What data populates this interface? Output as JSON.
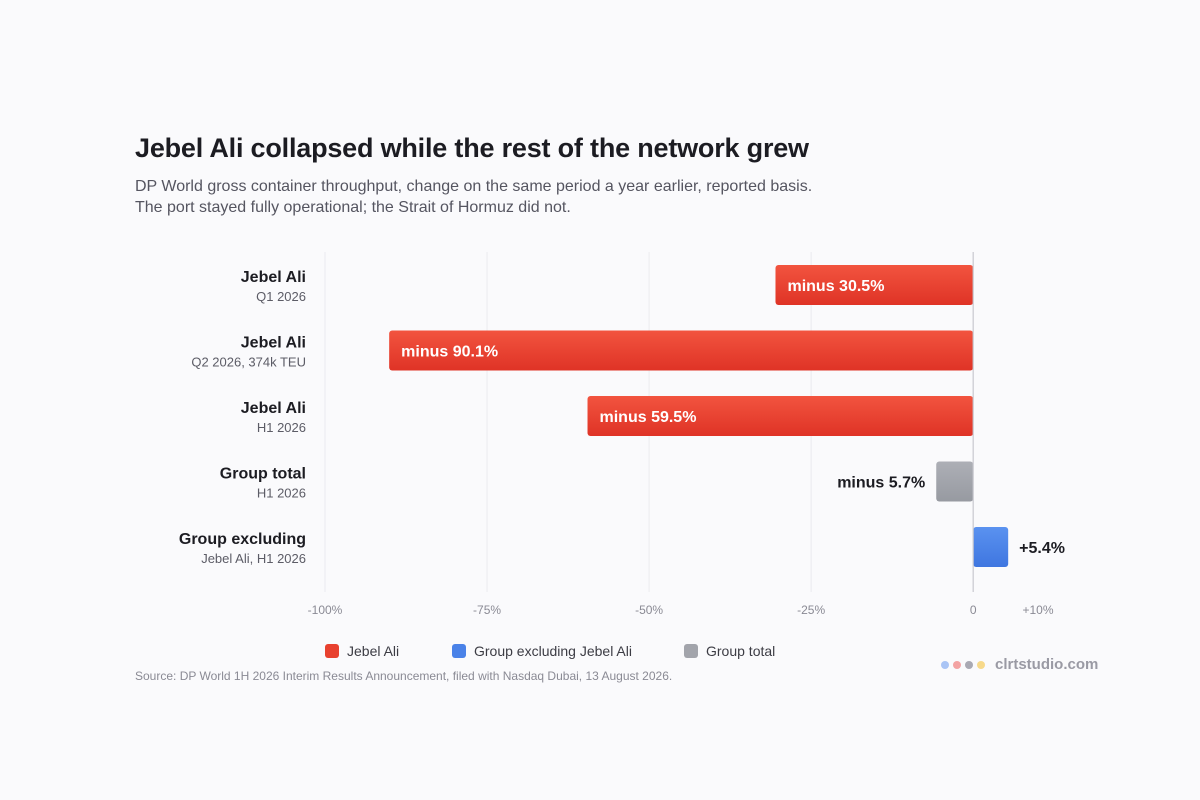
{
  "title": "Jebel Ali collapsed while the rest of the network grew",
  "subtitle_line1": "DP World gross container throughput, change on the same period a year earlier, reported basis.",
  "subtitle_line2": "The port stayed fully operational; the Strait of Hormuz did not.",
  "source": "Source: DP World 1H 2026 Interim Results Announcement, filed with Nasdaq Dubai, 13 August 2026.",
  "brand": {
    "name": "clrtstudio.com",
    "dot_colors": [
      "#a9c4f5",
      "#f3a3a3",
      "#a9a9b3",
      "#f7d98a"
    ]
  },
  "colors": {
    "jebel_ali": "#e8412f",
    "group_excluding": "#4a82e8",
    "group_total": "#a2a4ab",
    "grid": "#ebebef",
    "zero_line": "#c8c8cf"
  },
  "legend": [
    {
      "label": "Jebel Ali",
      "color": "#e8412f"
    },
    {
      "label": "Group excluding Jebel Ali",
      "color": "#4a82e8"
    },
    {
      "label": "Group total",
      "color": "#a2a4ab"
    }
  ],
  "chart_data": {
    "type": "bar",
    "orientation": "horizontal",
    "title": "Jebel Ali collapsed while the rest of the network grew",
    "xlim": [
      -100,
      10
    ],
    "x_ticks": [
      {
        "value": -100,
        "label": "-100%"
      },
      {
        "value": -75,
        "label": "-75%"
      },
      {
        "value": -50,
        "label": "-50%"
      },
      {
        "value": -25,
        "label": "-25%"
      },
      {
        "value": 0,
        "label": "0"
      },
      {
        "value": 10,
        "label": "+10%"
      }
    ],
    "grid": true,
    "legend_position": "bottom",
    "categories": [
      {
        "label": "Jebel Ali",
        "sublabel": "Q1 2026",
        "value": -30.5,
        "value_label": "minus 30.5%",
        "series": "Jebel Ali",
        "color": "#e8412f"
      },
      {
        "label": "Jebel Ali",
        "sublabel": "Q2 2026, 374k TEU",
        "value": -90.1,
        "value_label": "minus 90.1%",
        "series": "Jebel Ali",
        "color": "#e8412f"
      },
      {
        "label": "Jebel Ali",
        "sublabel": "H1 2026",
        "value": -59.5,
        "value_label": "minus 59.5%",
        "series": "Jebel Ali",
        "color": "#e8412f"
      },
      {
        "label": "Group total",
        "sublabel": "H1 2026",
        "value": -5.7,
        "value_label": "minus 5.7%",
        "series": "Group total",
        "color": "#a2a4ab"
      },
      {
        "label": "Group excluding",
        "sublabel": "Jebel Ali, H1 2026",
        "value": 5.4,
        "value_label": "+5.4%",
        "series": "Group excluding Jebel Ali",
        "color": "#4a82e8"
      }
    ]
  }
}
